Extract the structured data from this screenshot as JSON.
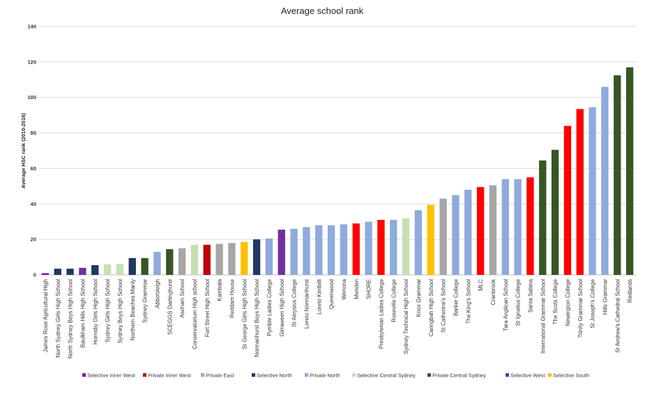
{
  "chart_data": {
    "type": "bar",
    "title": "Average school rank",
    "ylabel": "Average HSC rank (2010-2016)",
    "xlabel": "",
    "ylim": [
      0,
      140
    ],
    "yticks": [
      0,
      20,
      40,
      60,
      80,
      100,
      120,
      140
    ],
    "grid": true,
    "legend_position": "bottom",
    "groups": [
      {
        "name": "Selective Inner West",
        "color": "#7b1fa2"
      },
      {
        "name": "Private Inner West",
        "color": "#c00000"
      },
      {
        "name": "Private East",
        "color": "#a6a6a6"
      },
      {
        "name": "Selective North",
        "color": "#1f3864"
      },
      {
        "name": "Private North",
        "color": "#8faadc"
      },
      {
        "name": "Selective Central Sydney",
        "color": "#c5e0b4"
      },
      {
        "name": "Private Central Sydney",
        "color": "#375623"
      },
      {
        "name": "Selective West",
        "color": "#7030a0"
      },
      {
        "name": "Selective South",
        "color": "#ffc000"
      }
    ],
    "categories": [
      "James Rose Agricultural High",
      "North Sydney Girls High School",
      "North Sydney Boys High School",
      "Baulkham Hills High School",
      "Hornsby Girls High School",
      "Sydney Girls High School",
      "Sydney Boys High School",
      "Northern Beaches Manly",
      "Sydney Grammar",
      "Abbotsleigh",
      "SCEGGS Darlinghurst",
      "Ascham School",
      "Conservatorium High school",
      "Fort Street High School",
      "Kambala",
      "Reddam House",
      "St George Girls High School",
      "Normanhurst Boys High School",
      "Pymble Ladies College",
      "Girraween High School",
      "St Aloysius College",
      "Loreto Normanhurst",
      "Loreto Kirribilli",
      "Queenwood",
      "Wenona",
      "Meriden",
      "SHORE",
      "Presbyterian Ladies College",
      "Roseville College",
      "Sydney Technical High School",
      "Knox Grammar",
      "Caringbah High School",
      "St Catherine's School",
      "Barker College",
      "The King's School",
      "MLC",
      "Cranbrook",
      "Tara Anglican School",
      "St Ignatius College",
      "Santa Sabina",
      "International Grammar School",
      "The Scots College",
      "Newington College",
      "Trinity Grammar School",
      "St Joseph's College",
      "Hills Grammar",
      "St Andrew's Cathedral School",
      "Redlands"
    ],
    "values": [
      1,
      3.5,
      3.5,
      4,
      5.5,
      6,
      6,
      9.5,
      9.5,
      13,
      14.5,
      15,
      17,
      17,
      17.5,
      18,
      18.5,
      20,
      20.5,
      25.5,
      26,
      27,
      28,
      28,
      28.5,
      29,
      30,
      31,
      31,
      32,
      36.5,
      39.5,
      43,
      45,
      48,
      49.5,
      50.5,
      54,
      54,
      55,
      64.5,
      70.5,
      84,
      93.5,
      94.5,
      106,
      112.5,
      117
    ],
    "bar_colors": [
      "#7b1fa2",
      "#1f3864",
      "#1f3864",
      "#7030a0",
      "#1f3864",
      "#c5e0b4",
      "#c5e0b4",
      "#1f3864",
      "#375623",
      "#8faadc",
      "#375623",
      "#a6a6a6",
      "#c5e0b4",
      "#c00000",
      "#a6a6a6",
      "#a6a6a6",
      "#ffc000",
      "#1f3864",
      "#8faadc",
      "#7030a0",
      "#8faadc",
      "#8faadc",
      "#8faadc",
      "#8faadc",
      "#8faadc",
      "#ff0000",
      "#8faadc",
      "#ff0000",
      "#8faadc",
      "#c5e0b4",
      "#8faadc",
      "#ffc000",
      "#a6a6a6",
      "#8faadc",
      "#8faadc",
      "#ff0000",
      "#a6a6a6",
      "#8faadc",
      "#8faadc",
      "#ff0000",
      "#375623",
      "#375623",
      "#ff0000",
      "#ff0000",
      "#8faadc",
      "#8faadc",
      "#375623",
      "#375623"
    ]
  }
}
